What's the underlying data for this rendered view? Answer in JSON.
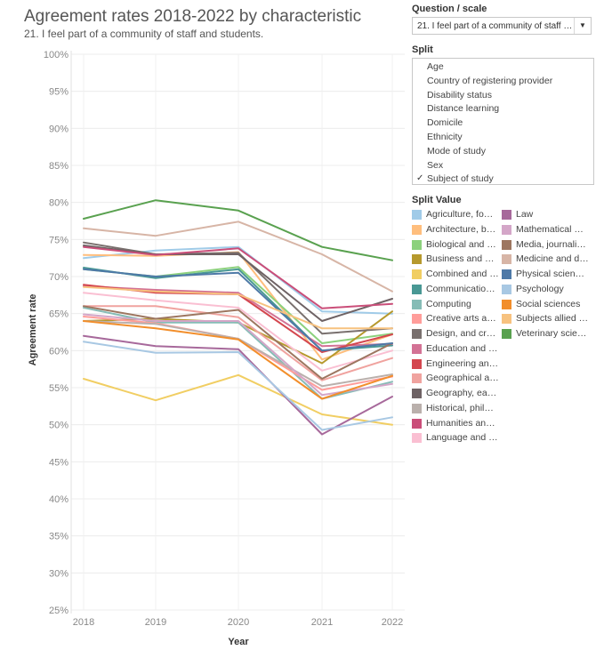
{
  "chart_data": {
    "type": "line",
    "title": "Agreement rates 2018-2022 by characteristic",
    "subtitle": "21. I feel part of a community of staff and students.",
    "xlabel": "Year",
    "ylabel": "Agreement rate",
    "x": [
      "2018",
      "2019",
      "2020",
      "2021",
      "2022"
    ],
    "ylim": [
      25,
      100
    ],
    "yticks": [
      "25%",
      "30%",
      "35%",
      "40%",
      "45%",
      "50%",
      "55%",
      "60%",
      "65%",
      "70%",
      "75%",
      "80%",
      "85%",
      "90%",
      "95%",
      "100%"
    ],
    "grid": true,
    "series": [
      {
        "name": "Agriculture, fo…",
        "color": "#a0cbe8",
        "values": [
          72.5,
          73.5,
          74.0,
          65.3,
          65.0
        ]
      },
      {
        "name": "Architecture, b…",
        "color": "#ffbe7d",
        "values": [
          72.9,
          72.8,
          73.3,
          58.8,
          62.2
        ]
      },
      {
        "name": "Biological and …",
        "color": "#8cd17d",
        "values": [
          71.0,
          70.0,
          71.3,
          61.0,
          62.3
        ]
      },
      {
        "name": "Business and …",
        "color": "#b6992d",
        "values": [
          64.0,
          64.3,
          63.8,
          58.3,
          65.3
        ]
      },
      {
        "name": "Combined and …",
        "color": "#f1ce63",
        "values": [
          56.2,
          53.3,
          56.7,
          51.4,
          50.0
        ]
      },
      {
        "name": "Communicatio…",
        "color": "#499894",
        "values": [
          71.2,
          69.8,
          71.0,
          60.0,
          60.7
        ]
      },
      {
        "name": "Computing",
        "color": "#86bcb6",
        "values": [
          65.8,
          63.8,
          63.8,
          53.5,
          55.8
        ]
      },
      {
        "name": "Creative arts a…",
        "color": "#ff9d9a",
        "values": [
          64.6,
          63.7,
          61.6,
          54.7,
          56.5
        ]
      },
      {
        "name": "Design, and cre…",
        "color": "#79706e",
        "values": [
          74.6,
          73.0,
          73.2,
          62.3,
          63.0
        ]
      },
      {
        "name": "Education and …",
        "color": "#d37295",
        "values": [
          68.7,
          68.2,
          67.8,
          60.6,
          60.9
        ]
      },
      {
        "name": "Engineering an…",
        "color": "#d4474f",
        "values": [
          68.9,
          67.8,
          67.6,
          59.8,
          62.2
        ]
      },
      {
        "name": "Geographical a…",
        "color": "#f0a39f",
        "values": [
          66.0,
          66.0,
          64.5,
          56.0,
          59.0
        ]
      },
      {
        "name": "Geography, ear…",
        "color": "#6e6264",
        "values": [
          74.2,
          73.0,
          73.0,
          64.0,
          67.0
        ]
      },
      {
        "name": "Historical, phil…",
        "color": "#bab0ac",
        "values": [
          64.0,
          63.6,
          61.6,
          55.2,
          56.8
        ]
      },
      {
        "name": "Humanities an…",
        "color": "#ca4e79",
        "values": [
          74.0,
          72.9,
          73.8,
          65.7,
          66.3
        ]
      },
      {
        "name": "Language and …",
        "color": "#fabfd2",
        "values": [
          67.8,
          66.8,
          65.8,
          57.3,
          60.0
        ]
      },
      {
        "name": "Law",
        "color": "#a7699b",
        "values": [
          62.0,
          60.6,
          60.2,
          48.7,
          53.8
        ]
      },
      {
        "name": "Mathematical …",
        "color": "#d4a6c8",
        "values": [
          64.9,
          64.0,
          64.0,
          54.0,
          55.5
        ]
      },
      {
        "name": "Media, journali…",
        "color": "#9d7660",
        "values": [
          66.0,
          64.3,
          65.5,
          56.2,
          61.0
        ]
      },
      {
        "name": "Medicine and d…",
        "color": "#d7b5a6",
        "values": [
          76.5,
          75.5,
          77.4,
          73.0,
          68.0
        ]
      },
      {
        "name": "Physical scienc…",
        "color": "#4e79a7",
        "values": [
          71.0,
          70.0,
          70.5,
          60.0,
          61.0
        ]
      },
      {
        "name": "Psychology",
        "color": "#a8c8e3",
        "values": [
          61.2,
          59.7,
          59.8,
          49.3,
          51.0
        ]
      },
      {
        "name": "Social sciences",
        "color": "#f28e2b",
        "values": [
          64.0,
          63.0,
          61.5,
          53.5,
          56.6
        ]
      },
      {
        "name": "Subjects allied …",
        "color": "#f7c27f",
        "values": [
          68.6,
          68.0,
          67.6,
          63.0,
          63.0
        ]
      },
      {
        "name": "Veterinary scie…",
        "color": "#59a14f",
        "values": [
          77.8,
          80.3,
          78.9,
          74.0,
          72.2
        ]
      }
    ]
  },
  "panel": {
    "question_heading": "Question / scale",
    "question_value": "21. I feel part of a community of staff an…",
    "dropdown_glyph": "▼",
    "split_heading": "Split",
    "check_glyph": "✓",
    "split_options": [
      {
        "label": "Age",
        "checked": false
      },
      {
        "label": "Country of registering provider",
        "checked": false
      },
      {
        "label": "Disability status",
        "checked": false
      },
      {
        "label": "Distance learning",
        "checked": false
      },
      {
        "label": "Domicile",
        "checked": false
      },
      {
        "label": "Ethnicity",
        "checked": false
      },
      {
        "label": "Mode of study",
        "checked": false
      },
      {
        "label": "Sex",
        "checked": false
      },
      {
        "label": "Subject of study",
        "checked": true
      }
    ],
    "split_value_heading": "Split Value"
  }
}
